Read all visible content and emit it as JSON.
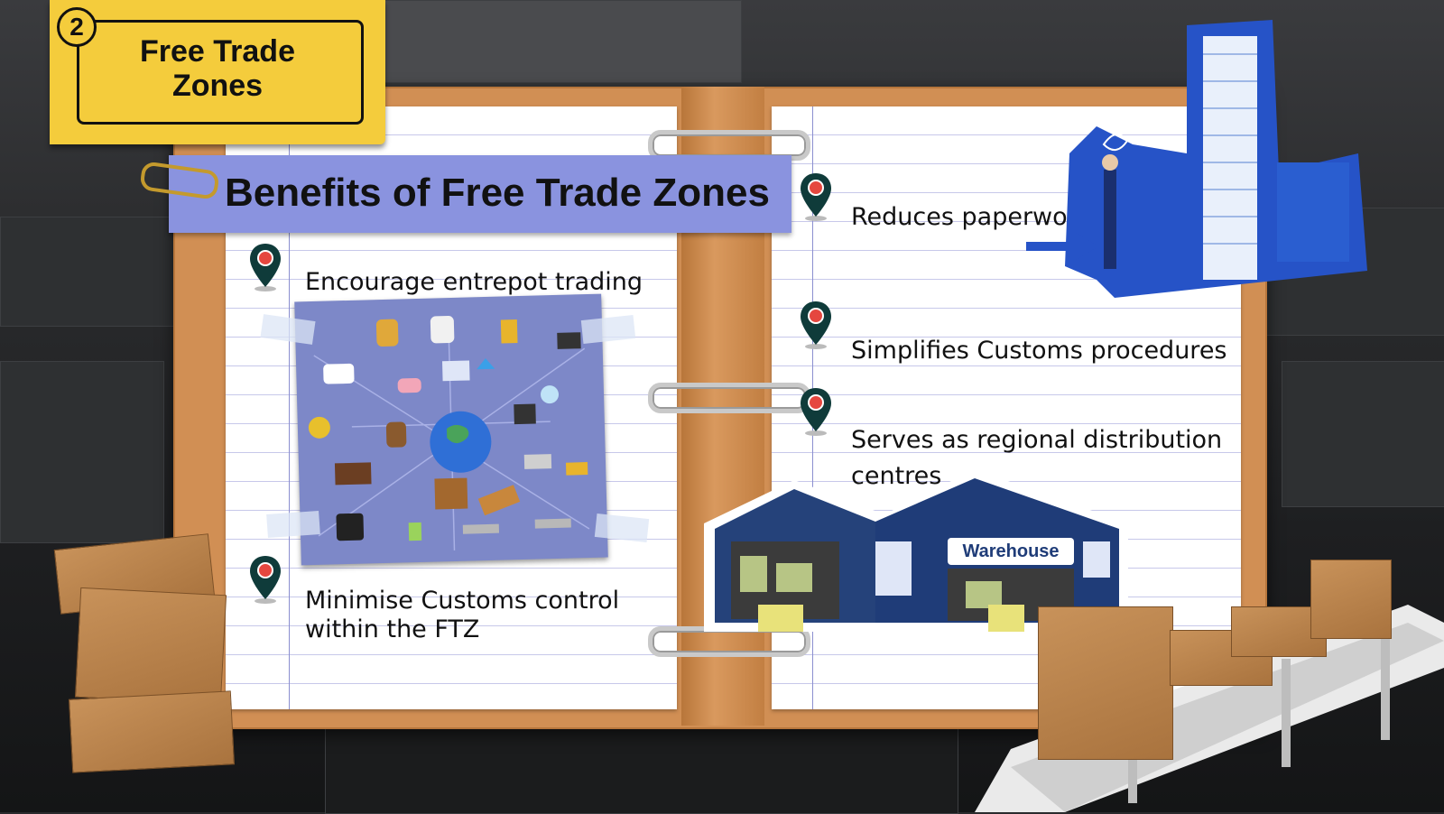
{
  "sticky_note": {
    "number": "2",
    "title_line1": "Free Trade",
    "title_line2": "Zones"
  },
  "heading": "Benefits of Free Trade Zones",
  "left_page": {
    "items": [
      {
        "text": "Encourage entrepot trading"
      },
      {
        "text_line1": "Minimise Customs control",
        "text_line2": "within the FTZ"
      }
    ]
  },
  "right_page": {
    "items": [
      {
        "text": "Reduces paperwork"
      },
      {
        "text": "Simplifies Customs procedures"
      },
      {
        "text_line1": "Serves as regional distribution",
        "text_line2": "centres"
      }
    ]
  },
  "warehouse_sign": "Warehouse",
  "colors": {
    "sticky": "#f4cc3c",
    "banner": "#8a93df",
    "pin": "#0f3b3a",
    "pin_dot": "#e5473f",
    "binder": "#d18f54",
    "paperwork_blue": "#2653c7"
  },
  "icons": [
    "location-pin-icon",
    "paperclip-icon",
    "binder-ring-icon",
    "arrow-right-icon"
  ]
}
